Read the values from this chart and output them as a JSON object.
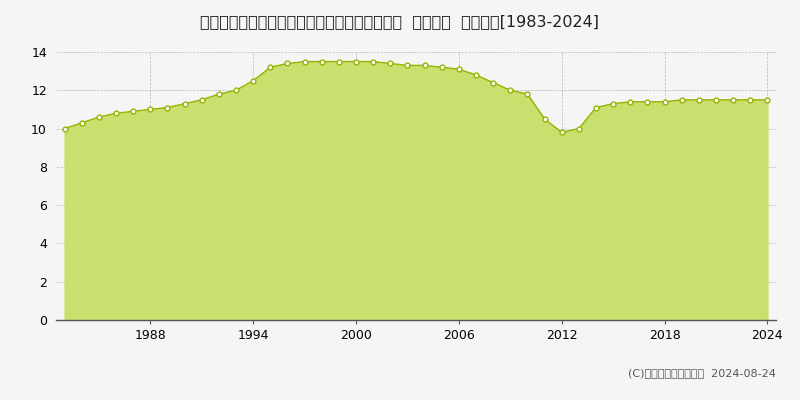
{
  "title": "福島県いわき市勿来町窪田町通１丁目５８番２  地価公示  地価推移[1983-2024]",
  "years": [
    1983,
    1984,
    1985,
    1986,
    1987,
    1988,
    1989,
    1990,
    1991,
    1992,
    1993,
    1994,
    1995,
    1996,
    1997,
    1998,
    1999,
    2000,
    2001,
    2002,
    2003,
    2004,
    2005,
    2006,
    2007,
    2008,
    2009,
    2010,
    2011,
    2012,
    2013,
    2014,
    2015,
    2016,
    2017,
    2018,
    2019,
    2020,
    2021,
    2022,
    2023,
    2024
  ],
  "values": [
    10.0,
    10.3,
    10.6,
    10.8,
    10.9,
    11.0,
    11.1,
    11.3,
    11.5,
    11.8,
    12.0,
    12.5,
    13.2,
    13.4,
    13.5,
    13.5,
    13.5,
    13.5,
    13.5,
    13.4,
    13.3,
    13.3,
    13.2,
    13.1,
    12.8,
    12.4,
    12.0,
    11.8,
    10.5,
    9.8,
    10.0,
    11.1,
    11.3,
    11.4,
    11.4,
    11.4,
    11.5,
    11.5,
    11.5,
    11.5,
    11.5,
    11.5
  ],
  "fill_color": "#c8e06e",
  "line_color": "#96b400",
  "marker_color": "#ffffff",
  "marker_edge_color": "#96b400",
  "background_color": "#f5f5f5",
  "plot_bg_color": "#f5f5f5",
  "grid_color": "#aaaaaa",
  "ylim": [
    0,
    14
  ],
  "yticks": [
    0,
    2,
    4,
    6,
    8,
    10,
    12,
    14
  ],
  "xticks": [
    1988,
    1994,
    2000,
    2006,
    2012,
    2018,
    2024
  ],
  "copyright_text": "(C)土地価格ドットコム  2024-08-24",
  "title_fontsize": 11.5,
  "axis_fontsize": 9,
  "legend_fontsize": 9,
  "copyright_fontsize": 8
}
